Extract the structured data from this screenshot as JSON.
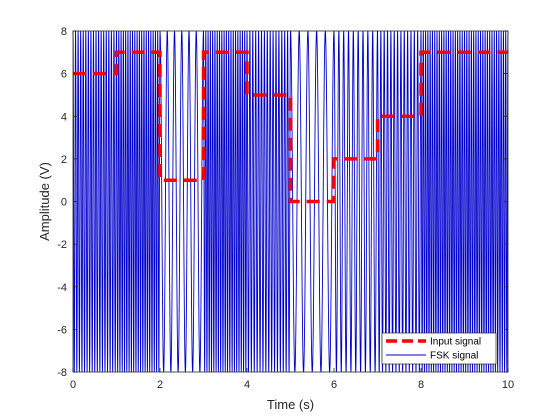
{
  "chart_data": {
    "type": "line",
    "xlabel": "Time (s)",
    "ylabel": "Amplitude (V)",
    "xlim": [
      0,
      10
    ],
    "ylim": [
      -8,
      8
    ],
    "xticks": [
      0,
      2,
      4,
      6,
      8,
      10
    ],
    "yticks": [
      -8,
      -6,
      -4,
      -2,
      0,
      2,
      4,
      6,
      8
    ],
    "grid": false,
    "legend_position": "bottom-right",
    "series": [
      {
        "name": "Input signal",
        "style": "dashed",
        "color": "#ff0000",
        "x": [
          0,
          1,
          2,
          3,
          4,
          5,
          6,
          7,
          8,
          9
        ],
        "values": [
          6,
          7,
          1,
          7,
          5,
          0,
          2,
          4,
          7,
          7
        ]
      },
      {
        "name": "FSK signal",
        "style": "solid",
        "color": "#0000cc",
        "amplitude": 8,
        "cycles_per_second": [
          17,
          19,
          6,
          19,
          15,
          5,
          9,
          13,
          19,
          19
        ]
      }
    ]
  }
}
